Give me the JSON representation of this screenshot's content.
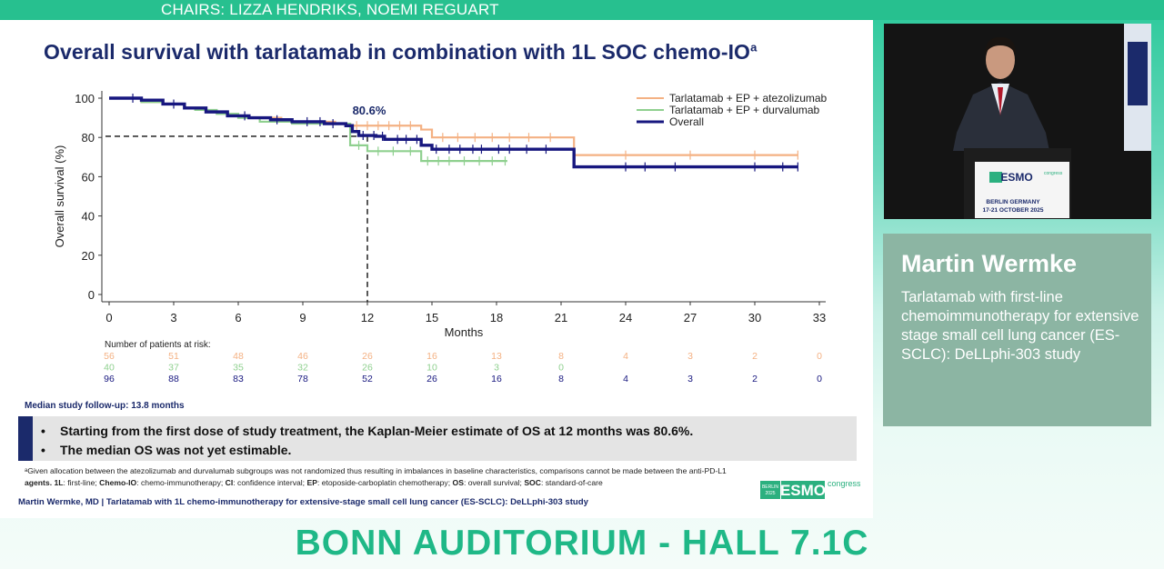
{
  "header": {
    "chairs": "CHAIRS: LIZZA HENDRIKS, NOEMI REGUART"
  },
  "slide": {
    "title": "Overall survival with tarlatamab in combination with 1L SOC chemo-IO",
    "title_sup": "a",
    "followup": "Median study follow-up: 13.8 months",
    "key_points": [
      "Starting from the first dose of study treatment, the Kaplan-Meier estimate of OS at 12 months was 80.6%.",
      "The median OS was not yet estimable."
    ],
    "footnote_line1": "ᵃGiven allocation between the atezolizumab and durvalumab subgroups was not randomized thus resulting in imbalances in baseline characteristics, comparisons cannot be made between the anti-PD-L1",
    "footnote_line2_parts": [
      {
        "b": "agents. 1L",
        "t": ": first-line; "
      },
      {
        "b": "Chemo-IO",
        "t": ": chemo-immunotherapy; "
      },
      {
        "b": "CI",
        "t": ": confidence interval; "
      },
      {
        "b": "EP",
        "t": ": etoposide-carboplatin chemotherapy; "
      },
      {
        "b": "OS",
        "t": ": overall survival; "
      },
      {
        "b": "SOC",
        "t": ": standard-of-care"
      }
    ],
    "credit": "Martin Wermke, MD | Tarlatamab with 1L chemo-immunotherapy for extensive-stage small cell lung cancer (ES-SCLC): DeLLphi-303 study",
    "logo": {
      "year": "BERLIN 2025",
      "mark": "ESMO",
      "word": "congress"
    }
  },
  "chart_data": {
    "type": "line",
    "title": "Overall survival with tarlatamab in combination with 1L SOC chemo-IO",
    "xlabel": "Months",
    "ylabel": "Overall survival (%)",
    "xlim": [
      0,
      33
    ],
    "ylim": [
      0,
      100
    ],
    "xticks": [
      0,
      3,
      6,
      9,
      12,
      15,
      18,
      21,
      24,
      27,
      30,
      33
    ],
    "yticks": [
      0,
      20,
      40,
      60,
      80,
      100
    ],
    "annotation": {
      "label": "80.6%",
      "x": 12,
      "y": 80.6
    },
    "legend_position": "top-right",
    "series": [
      {
        "name": "Tarlatamab + EP + atezolizumab",
        "color": "#f4b183",
        "points": [
          [
            0,
            100
          ],
          [
            1,
            100
          ],
          [
            1.5,
            98
          ],
          [
            2.5,
            97
          ],
          [
            3.5,
            95
          ],
          [
            4.5,
            93
          ],
          [
            5.5,
            91
          ],
          [
            6.5,
            90
          ],
          [
            7.5,
            90
          ],
          [
            8,
            89
          ],
          [
            8.5,
            88
          ],
          [
            9.5,
            88
          ],
          [
            10.5,
            87
          ],
          [
            11.2,
            86
          ],
          [
            14.5,
            84
          ],
          [
            15,
            80
          ],
          [
            21.6,
            80
          ],
          [
            21.6,
            71
          ],
          [
            32,
            71
          ]
        ],
        "censors": [
          11.5,
          12,
          12.5,
          13,
          13.5,
          14,
          15.5,
          16.2,
          17,
          17.8,
          18.6,
          19.5,
          20.5,
          24,
          27,
          30,
          32
        ]
      },
      {
        "name": "Tarlatamab + EP + durvalumab",
        "color": "#8fd08f",
        "points": [
          [
            0,
            100
          ],
          [
            1.2,
            100
          ],
          [
            1.5,
            98
          ],
          [
            2.5,
            97
          ],
          [
            3.5,
            95
          ],
          [
            4,
            94
          ],
          [
            5,
            92
          ],
          [
            6,
            90
          ],
          [
            7,
            88
          ],
          [
            8.5,
            87
          ],
          [
            10,
            87
          ],
          [
            11.2,
            86
          ],
          [
            11.2,
            76
          ],
          [
            12,
            76
          ],
          [
            12,
            73
          ],
          [
            14.5,
            73
          ],
          [
            14.5,
            68
          ],
          [
            18.5,
            68
          ]
        ],
        "censors": [
          11.6,
          12.5,
          13.2,
          14,
          14.8,
          15.3,
          15.8,
          16.5,
          17.2,
          17.8,
          18.4
        ]
      },
      {
        "name": "Overall",
        "color": "#17177f",
        "points": [
          [
            0,
            100
          ],
          [
            1,
            100
          ],
          [
            1.5,
            99
          ],
          [
            2.5,
            97
          ],
          [
            3.5,
            95
          ],
          [
            4.5,
            93
          ],
          [
            5.5,
            91
          ],
          [
            6.5,
            90
          ],
          [
            7.5,
            89
          ],
          [
            8.5,
            88
          ],
          [
            10,
            87
          ],
          [
            11,
            86
          ],
          [
            11.3,
            83
          ],
          [
            11.6,
            81
          ],
          [
            12.4,
            80.6
          ],
          [
            12.8,
            79
          ],
          [
            14.5,
            78
          ],
          [
            14.5,
            76
          ],
          [
            15,
            74
          ],
          [
            21.6,
            74
          ],
          [
            21.6,
            65
          ],
          [
            32,
            65
          ]
        ],
        "censors": [
          1.1,
          3,
          6.3,
          7.8,
          9.2,
          9.8,
          10.4,
          11.8,
          12.3,
          12.7,
          13.4,
          13.8,
          14.3,
          15.2,
          15.8,
          16.3,
          16.9,
          17.3,
          18.1,
          18.6,
          19.4,
          20.3,
          24,
          24.9,
          26.3,
          30,
          31.3,
          32
        ]
      }
    ],
    "risk_table": {
      "title": "Number of patients at risk:",
      "rows": [
        {
          "color": "#f4b183",
          "values": [
            "56",
            "51",
            "48",
            "46",
            "26",
            "16",
            "13",
            "8",
            "4",
            "3",
            "2",
            "0"
          ]
        },
        {
          "color": "#8fd08f",
          "values": [
            "40",
            "37",
            "35",
            "32",
            "26",
            "10",
            "3",
            "0",
            "",
            "",
            "",
            ""
          ]
        },
        {
          "color": "#17177f",
          "values": [
            "96",
            "88",
            "83",
            "78",
            "52",
            "26",
            "16",
            "8",
            "4",
            "3",
            "2",
            "0"
          ]
        }
      ]
    }
  },
  "speaker": {
    "name": "Martin Wermke",
    "talk": "Tarlatamab with first-line chemoimmunotherapy for extensive stage small cell lung cancer (ES-SCLC): DeLLphi-303 study"
  },
  "video": {
    "podium_mark": "ESMO",
    "podium_word": "congress",
    "podium_line1": "BERLIN GERMANY",
    "podium_line2": "17-21 OCTOBER 2025"
  },
  "footer": {
    "hall": "BONN AUDITORIUM - HALL 7.1C"
  }
}
